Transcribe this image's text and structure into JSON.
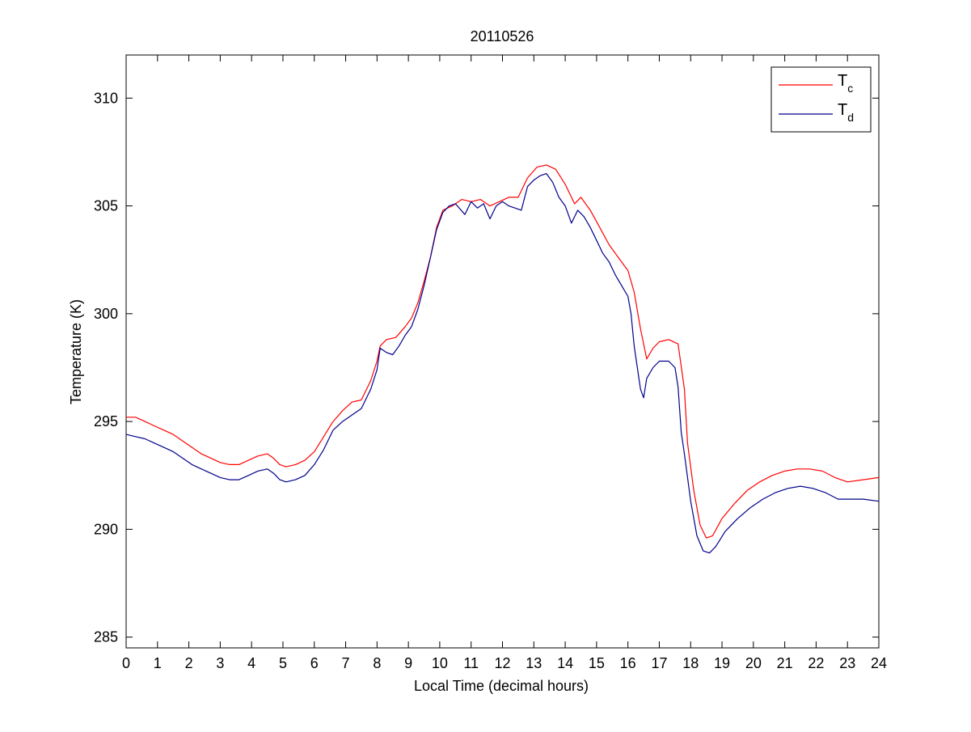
{
  "chart_data": {
    "type": "line",
    "title": "20110526",
    "xlabel": "Local Time (decimal hours)",
    "ylabel": "Temperature (K)",
    "xlim": [
      0,
      24
    ],
    "ylim": [
      284.5,
      312
    ],
    "xticks": [
      0,
      1,
      2,
      3,
      4,
      5,
      6,
      7,
      8,
      9,
      10,
      11,
      12,
      13,
      14,
      15,
      16,
      17,
      18,
      19,
      20,
      21,
      22,
      23,
      24
    ],
    "yticks": [
      285,
      290,
      295,
      300,
      305,
      310
    ],
    "grid": false,
    "legend_position": "top-right",
    "series": [
      {
        "name": "T",
        "subscript": "c",
        "color": "#ff0000",
        "points": [
          [
            0,
            295.2
          ],
          [
            0.3,
            295.2
          ],
          [
            0.6,
            295.0
          ],
          [
            0.9,
            294.8
          ],
          [
            1.2,
            294.6
          ],
          [
            1.5,
            294.4
          ],
          [
            1.8,
            294.1
          ],
          [
            2.1,
            293.8
          ],
          [
            2.4,
            293.5
          ],
          [
            2.7,
            293.3
          ],
          [
            3.0,
            293.1
          ],
          [
            3.3,
            293.0
          ],
          [
            3.6,
            293.0
          ],
          [
            3.9,
            293.2
          ],
          [
            4.2,
            293.4
          ],
          [
            4.5,
            293.5
          ],
          [
            4.7,
            293.3
          ],
          [
            4.9,
            293.0
          ],
          [
            5.1,
            292.9
          ],
          [
            5.4,
            293.0
          ],
          [
            5.7,
            293.2
          ],
          [
            6.0,
            293.6
          ],
          [
            6.3,
            294.3
          ],
          [
            6.6,
            295.0
          ],
          [
            6.9,
            295.5
          ],
          [
            7.2,
            295.9
          ],
          [
            7.5,
            296.0
          ],
          [
            7.8,
            296.9
          ],
          [
            8.0,
            297.8
          ],
          [
            8.1,
            298.5
          ],
          [
            8.3,
            298.8
          ],
          [
            8.6,
            298.9
          ],
          [
            8.9,
            299.4
          ],
          [
            9.1,
            299.8
          ],
          [
            9.3,
            300.5
          ],
          [
            9.5,
            301.5
          ],
          [
            9.7,
            302.6
          ],
          [
            9.9,
            304.0
          ],
          [
            10.1,
            304.8
          ],
          [
            10.4,
            305.0
          ],
          [
            10.7,
            305.3
          ],
          [
            11.0,
            305.2
          ],
          [
            11.3,
            305.3
          ],
          [
            11.6,
            305.0
          ],
          [
            11.9,
            305.2
          ],
          [
            12.2,
            305.4
          ],
          [
            12.5,
            305.4
          ],
          [
            12.8,
            306.3
          ],
          [
            13.1,
            306.8
          ],
          [
            13.4,
            306.9
          ],
          [
            13.7,
            306.7
          ],
          [
            14.0,
            306.0
          ],
          [
            14.3,
            305.1
          ],
          [
            14.5,
            305.4
          ],
          [
            14.8,
            304.8
          ],
          [
            15.1,
            304.0
          ],
          [
            15.4,
            303.2
          ],
          [
            15.7,
            302.6
          ],
          [
            16.0,
            302.0
          ],
          [
            16.2,
            301.0
          ],
          [
            16.4,
            299.3
          ],
          [
            16.6,
            297.9
          ],
          [
            16.8,
            298.4
          ],
          [
            17.0,
            298.7
          ],
          [
            17.3,
            298.8
          ],
          [
            17.6,
            298.6
          ],
          [
            17.8,
            296.5
          ],
          [
            17.9,
            294.0
          ],
          [
            18.1,
            291.8
          ],
          [
            18.3,
            290.2
          ],
          [
            18.5,
            289.6
          ],
          [
            18.7,
            289.7
          ],
          [
            19.0,
            290.5
          ],
          [
            19.4,
            291.2
          ],
          [
            19.8,
            291.8
          ],
          [
            20.2,
            292.2
          ],
          [
            20.6,
            292.5
          ],
          [
            21.0,
            292.7
          ],
          [
            21.4,
            292.8
          ],
          [
            21.8,
            292.8
          ],
          [
            22.2,
            292.7
          ],
          [
            22.6,
            292.4
          ],
          [
            23.0,
            292.2
          ],
          [
            23.5,
            292.3
          ],
          [
            24,
            292.4
          ]
        ]
      },
      {
        "name": "T",
        "subscript": "d",
        "color": "#00008b",
        "points": [
          [
            0,
            294.4
          ],
          [
            0.3,
            294.3
          ],
          [
            0.6,
            294.2
          ],
          [
            0.9,
            294.0
          ],
          [
            1.2,
            293.8
          ],
          [
            1.5,
            293.6
          ],
          [
            1.8,
            293.3
          ],
          [
            2.1,
            293.0
          ],
          [
            2.4,
            292.8
          ],
          [
            2.7,
            292.6
          ],
          [
            3.0,
            292.4
          ],
          [
            3.3,
            292.3
          ],
          [
            3.6,
            292.3
          ],
          [
            3.9,
            292.5
          ],
          [
            4.2,
            292.7
          ],
          [
            4.5,
            292.8
          ],
          [
            4.7,
            292.6
          ],
          [
            4.9,
            292.3
          ],
          [
            5.1,
            292.2
          ],
          [
            5.4,
            292.3
          ],
          [
            5.7,
            292.5
          ],
          [
            6.0,
            293.0
          ],
          [
            6.3,
            293.7
          ],
          [
            6.6,
            294.6
          ],
          [
            6.9,
            295.0
          ],
          [
            7.2,
            295.3
          ],
          [
            7.5,
            295.6
          ],
          [
            7.8,
            296.5
          ],
          [
            8.0,
            297.4
          ],
          [
            8.1,
            298.4
          ],
          [
            8.3,
            298.2
          ],
          [
            8.5,
            298.1
          ],
          [
            8.7,
            298.5
          ],
          [
            8.9,
            299.0
          ],
          [
            9.1,
            299.4
          ],
          [
            9.3,
            300.2
          ],
          [
            9.5,
            301.3
          ],
          [
            9.7,
            302.6
          ],
          [
            9.9,
            303.9
          ],
          [
            10.1,
            304.7
          ],
          [
            10.3,
            305.0
          ],
          [
            10.5,
            305.1
          ],
          [
            10.8,
            304.6
          ],
          [
            11.0,
            305.2
          ],
          [
            11.2,
            304.9
          ],
          [
            11.4,
            305.1
          ],
          [
            11.6,
            304.4
          ],
          [
            11.8,
            305.0
          ],
          [
            12.0,
            305.2
          ],
          [
            12.2,
            305.0
          ],
          [
            12.4,
            304.9
          ],
          [
            12.6,
            304.8
          ],
          [
            12.8,
            305.9
          ],
          [
            13.0,
            306.2
          ],
          [
            13.2,
            306.4
          ],
          [
            13.4,
            306.5
          ],
          [
            13.6,
            306.1
          ],
          [
            13.8,
            305.4
          ],
          [
            14.0,
            305.0
          ],
          [
            14.2,
            304.2
          ],
          [
            14.4,
            304.8
          ],
          [
            14.6,
            304.5
          ],
          [
            14.8,
            304.0
          ],
          [
            15.0,
            303.4
          ],
          [
            15.2,
            302.8
          ],
          [
            15.4,
            302.4
          ],
          [
            15.6,
            301.8
          ],
          [
            15.8,
            301.3
          ],
          [
            16.0,
            300.8
          ],
          [
            16.1,
            300.0
          ],
          [
            16.2,
            298.5
          ],
          [
            16.3,
            297.5
          ],
          [
            16.4,
            296.5
          ],
          [
            16.5,
            296.1
          ],
          [
            16.6,
            297.0
          ],
          [
            16.8,
            297.5
          ],
          [
            17.0,
            297.8
          ],
          [
            17.3,
            297.8
          ],
          [
            17.5,
            297.5
          ],
          [
            17.6,
            296.6
          ],
          [
            17.7,
            294.5
          ],
          [
            17.8,
            293.5
          ],
          [
            18.0,
            291.3
          ],
          [
            18.2,
            289.7
          ],
          [
            18.4,
            289.0
          ],
          [
            18.6,
            288.9
          ],
          [
            18.8,
            289.2
          ],
          [
            19.1,
            289.9
          ],
          [
            19.5,
            290.5
          ],
          [
            19.9,
            291.0
          ],
          [
            20.3,
            291.4
          ],
          [
            20.7,
            291.7
          ],
          [
            21.1,
            291.9
          ],
          [
            21.5,
            292.0
          ],
          [
            21.9,
            291.9
          ],
          [
            22.3,
            291.7
          ],
          [
            22.7,
            291.4
          ],
          [
            23.1,
            291.4
          ],
          [
            23.5,
            291.4
          ],
          [
            24,
            291.3
          ]
        ]
      }
    ]
  }
}
